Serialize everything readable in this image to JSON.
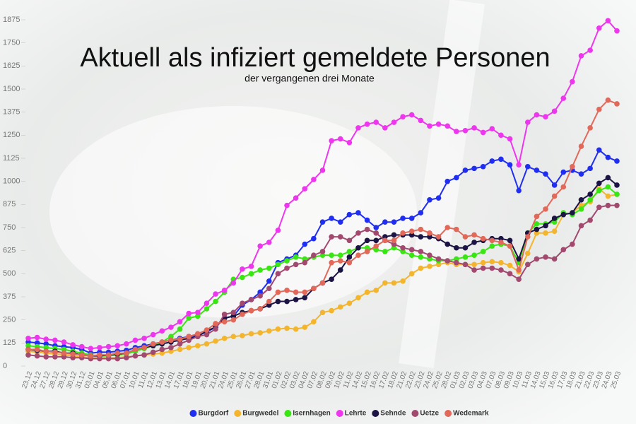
{
  "chart_data": {
    "type": "line",
    "title": "Aktuell als infiziert gemeldete Personen",
    "subtitle": "der vergangenen drei Monate",
    "categories": [
      "23.12",
      "24.12",
      "27.12",
      "28.12",
      "29.12",
      "30.12",
      "31.12",
      "03.01",
      "04.01",
      "05.01",
      "06.01",
      "07.01",
      "10.01",
      "11.01",
      "12.01",
      "13.01",
      "14.01",
      "17.01",
      "18.01",
      "19.01",
      "20.01",
      "21.01",
      "24.01",
      "25.01",
      "26.01",
      "27.01",
      "28.01",
      "31.01",
      "01.02",
      "02.02",
      "03.02",
      "04.02",
      "07.02",
      "08.02",
      "09.02",
      "10.02",
      "11.02",
      "14.02",
      "15.02",
      "16.02",
      "17.02",
      "18.02",
      "21.02",
      "22.02",
      "23.02",
      "24.02",
      "25.02",
      "28.02",
      "01.03",
      "02.03",
      "03.03",
      "04.03",
      "07.03",
      "08.03",
      "09.03",
      "10.03",
      "11.03",
      "14.03",
      "15.03",
      "16.03",
      "17.03",
      "18.03",
      "21.03",
      "22.03",
      "23.03",
      "24.03",
      "25.03"
    ],
    "ylim": [
      0,
      1875
    ],
    "yticks": [
      0,
      125,
      250,
      375,
      500,
      625,
      750,
      875,
      1000,
      1125,
      1250,
      1375,
      1500,
      1625,
      1750,
      1875
    ],
    "legend_position": "bottom",
    "series": [
      {
        "name": "Burgdorf",
        "color": "#1f2ef0",
        "values": [
          130,
          125,
          120,
          110,
          105,
          100,
          90,
          70,
          75,
          75,
          80,
          85,
          100,
          110,
          120,
          130,
          140,
          150,
          160,
          165,
          185,
          210,
          260,
          270,
          330,
          360,
          400,
          460,
          560,
          580,
          600,
          660,
          690,
          780,
          800,
          780,
          820,
          830,
          790,
          750,
          780,
          780,
          800,
          800,
          830,
          900,
          910,
          1000,
          1020,
          1060,
          1070,
          1080,
          1110,
          1120,
          1090,
          950,
          1080,
          1060,
          1040,
          980,
          1050,
          1060,
          1040,
          1070,
          1170,
          1130,
          1110
        ]
      },
      {
        "name": "Burgwedel",
        "color": "#f4b52e",
        "values": [
          80,
          75,
          70,
          65,
          60,
          55,
          50,
          45,
          45,
          45,
          45,
          50,
          55,
          60,
          65,
          70,
          80,
          90,
          100,
          110,
          120,
          135,
          150,
          160,
          165,
          175,
          180,
          190,
          200,
          205,
          200,
          210,
          240,
          290,
          300,
          320,
          340,
          370,
          400,
          410,
          450,
          450,
          460,
          500,
          530,
          540,
          550,
          560,
          550,
          550,
          550,
          560,
          565,
          560,
          545,
          510,
          610,
          720,
          720,
          730,
          820,
          830,
          870,
          890,
          960,
          920,
          930
        ]
      },
      {
        "name": "Isernhagen",
        "color": "#38e612",
        "values": [
          110,
          105,
          100,
          95,
          90,
          80,
          70,
          60,
          55,
          55,
          60,
          65,
          80,
          95,
          110,
          130,
          160,
          200,
          260,
          270,
          310,
          350,
          400,
          470,
          480,
          500,
          520,
          530,
          550,
          570,
          590,
          580,
          590,
          600,
          600,
          600,
          620,
          640,
          640,
          630,
          620,
          640,
          620,
          600,
          590,
          580,
          570,
          570,
          580,
          590,
          600,
          620,
          650,
          660,
          650,
          560,
          720,
          770,
          770,
          780,
          830,
          820,
          850,
          900,
          950,
          970,
          930
        ]
      },
      {
        "name": "Lehrte",
        "color": "#ee36ee",
        "values": [
          150,
          155,
          145,
          140,
          130,
          115,
          105,
          95,
          100,
          105,
          110,
          120,
          140,
          150,
          170,
          190,
          210,
          240,
          285,
          290,
          340,
          390,
          410,
          450,
          525,
          540,
          650,
          670,
          735,
          870,
          910,
          960,
          1010,
          1060,
          1220,
          1230,
          1210,
          1290,
          1310,
          1320,
          1290,
          1320,
          1350,
          1360,
          1330,
          1300,
          1310,
          1300,
          1270,
          1275,
          1290,
          1265,
          1285,
          1250,
          1230,
          1090,
          1320,
          1360,
          1350,
          1380,
          1450,
          1540,
          1680,
          1710,
          1830,
          1870,
          1815
        ]
      },
      {
        "name": "Sehnde",
        "color": "#1c1444",
        "values": [
          90,
          85,
          80,
          80,
          70,
          70,
          60,
          55,
          55,
          60,
          65,
          70,
          90,
          100,
          110,
          120,
          130,
          140,
          150,
          160,
          190,
          210,
          260,
          270,
          290,
          300,
          310,
          330,
          350,
          350,
          360,
          370,
          420,
          450,
          470,
          520,
          590,
          640,
          680,
          680,
          700,
          710,
          710,
          710,
          700,
          700,
          690,
          660,
          640,
          640,
          670,
          680,
          690,
          690,
          680,
          580,
          720,
          740,
          760,
          800,
          820,
          830,
          900,
          930,
          990,
          1020,
          980
        ]
      },
      {
        "name": "Uetze",
        "color": "#a2496f",
        "values": [
          60,
          55,
          50,
          50,
          50,
          45,
          45,
          40,
          40,
          40,
          40,
          45,
          55,
          60,
          75,
          90,
          100,
          120,
          140,
          160,
          170,
          200,
          280,
          290,
          340,
          360,
          380,
          420,
          500,
          530,
          550,
          560,
          600,
          620,
          700,
          700,
          680,
          720,
          740,
          720,
          680,
          660,
          640,
          630,
          620,
          600,
          580,
          570,
          560,
          550,
          520,
          530,
          530,
          520,
          500,
          470,
          550,
          580,
          590,
          580,
          630,
          660,
          760,
          790,
          860,
          870,
          870
        ]
      },
      {
        "name": "Wedemark",
        "color": "#e2695a",
        "values": [
          90,
          90,
          80,
          75,
          70,
          65,
          60,
          55,
          60,
          60,
          70,
          70,
          90,
          100,
          120,
          130,
          140,
          145,
          160,
          175,
          195,
          230,
          240,
          250,
          280,
          300,
          310,
          350,
          400,
          410,
          400,
          400,
          420,
          450,
          560,
          570,
          560,
          600,
          620,
          650,
          680,
          680,
          720,
          730,
          740,
          720,
          700,
          750,
          740,
          700,
          710,
          690,
          680,
          670,
          650,
          520,
          700,
          810,
          850,
          920,
          970,
          1080,
          1190,
          1290,
          1390,
          1440,
          1420
        ]
      }
    ]
  }
}
